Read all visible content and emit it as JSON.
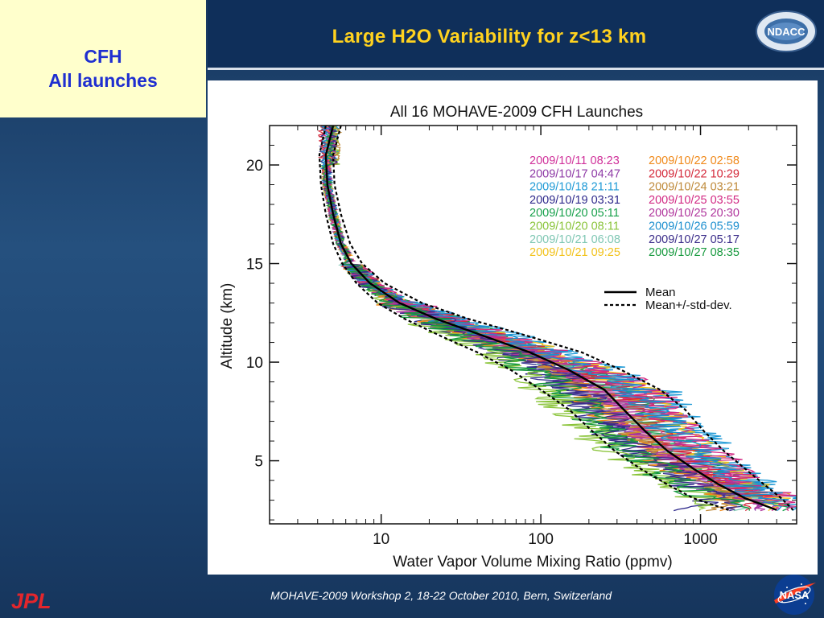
{
  "slide": {
    "tag_line1": "CFH",
    "tag_line2": "All launches",
    "title": "Large H2O Variability for z<13 km",
    "footer": "MOHAVE-2009 Workshop 2, 18-22 October 2010, Bern, Switzerland",
    "logo_ndacc": "NDACC",
    "logo_jpl": "JPL",
    "logo_nasa": "NASA"
  },
  "colors": {
    "title": "#ffd21f",
    "tag_text": "#1f2fd0",
    "tag_bg": "#ffffcc"
  },
  "chart_data": {
    "type": "line",
    "title": "All 16 MOHAVE-2009 CFH Launches",
    "xlabel": "Water Vapor Volume Mixing Ratio (ppmv)",
    "ylabel": "Altitude (km)",
    "xscale": "log",
    "xlim": [
      2,
      4000
    ],
    "ylim": [
      1.8,
      22
    ],
    "xticks": [
      {
        "v": 10,
        "label": "10"
      },
      {
        "v": 100,
        "label": "100"
      },
      {
        "v": 1000,
        "label": "1000"
      }
    ],
    "yticks": [
      {
        "v": 5,
        "label": "5"
      },
      {
        "v": 10,
        "label": "10"
      },
      {
        "v": 15,
        "label": "15"
      },
      {
        "v": 20,
        "label": "20"
      }
    ],
    "grid": false,
    "legend_position": "top-right",
    "mean": {
      "name": "Mean",
      "points": [
        [
          5.0,
          22
        ],
        [
          4.5,
          20.5
        ],
        [
          4.6,
          19
        ],
        [
          5,
          17.5
        ],
        [
          5.6,
          16
        ],
        [
          6.5,
          15
        ],
        [
          8.5,
          14
        ],
        [
          13,
          13
        ],
        [
          22,
          12.2
        ],
        [
          45,
          11.3
        ],
        [
          85,
          10.5
        ],
        [
          150,
          9.6
        ],
        [
          250,
          8.6
        ],
        [
          330,
          7.6
        ],
        [
          450,
          6.5
        ],
        [
          620,
          5.5
        ],
        [
          900,
          4.6
        ],
        [
          1300,
          3.8
        ],
        [
          1900,
          3.1
        ],
        [
          3000,
          2.5
        ]
      ]
    },
    "std": {
      "name": "Mean+/-std-dev.",
      "lower": [
        [
          4.5,
          22
        ],
        [
          4.1,
          20.5
        ],
        [
          4.2,
          19
        ],
        [
          4.5,
          17.5
        ],
        [
          5,
          16
        ],
        [
          5.7,
          15
        ],
        [
          7,
          14
        ],
        [
          9.5,
          13
        ],
        [
          14,
          12.2
        ],
        [
          24,
          11.3
        ],
        [
          40,
          10.5
        ],
        [
          65,
          9.6
        ],
        [
          100,
          8.6
        ],
        [
          150,
          7.6
        ],
        [
          210,
          6.5
        ],
        [
          290,
          5.5
        ],
        [
          420,
          4.6
        ],
        [
          620,
          3.8
        ],
        [
          900,
          3.1
        ],
        [
          1500,
          2.5
        ]
      ],
      "upper": [
        [
          5.6,
          22
        ],
        [
          5.0,
          20.5
        ],
        [
          5.1,
          19
        ],
        [
          5.6,
          17.5
        ],
        [
          6.4,
          16
        ],
        [
          7.6,
          15
        ],
        [
          10.5,
          14
        ],
        [
          18,
          13
        ],
        [
          35,
          12.2
        ],
        [
          85,
          11.3
        ],
        [
          180,
          10.5
        ],
        [
          320,
          9.6
        ],
        [
          560,
          8.6
        ],
        [
          800,
          7.6
        ],
        [
          1050,
          6.5
        ],
        [
          1400,
          5.5
        ],
        [
          1900,
          4.6
        ],
        [
          2500,
          3.8
        ],
        [
          3200,
          3.1
        ],
        [
          3800,
          2.5
        ]
      ]
    },
    "series": [
      {
        "name": "2009/10/11 08:23",
        "color": "#d0309a",
        "start": 4.6,
        "end": 2700,
        "shape": 0.4
      },
      {
        "name": "2009/10/17 04:47",
        "color": "#8e3aa6",
        "start": 4.8,
        "end": 2200,
        "shape": -0.2
      },
      {
        "name": "2009/10/18 21:11",
        "color": "#1f9ad6",
        "start": 5.1,
        "end": 3600,
        "shape": 0.9
      },
      {
        "name": "2009/10/19 03:31",
        "color": "#2f2a8c",
        "start": 4.4,
        "end": 600,
        "shape": -0.6
      },
      {
        "name": "2009/10/20 05:11",
        "color": "#16a04a",
        "start": 4.9,
        "end": 3300,
        "shape": 0.3
      },
      {
        "name": "2009/10/20 08:11",
        "color": "#8ac43a",
        "start": 5.2,
        "end": 900,
        "shape": -1.0
      },
      {
        "name": "2009/10/21 06:08",
        "color": "#7fc7b3",
        "start": 4.5,
        "end": 1500,
        "shape": 0.1
      },
      {
        "name": "2009/10/21 09:25",
        "color": "#f2c21a",
        "start": 5.0,
        "end": 2600,
        "shape": 0.6
      },
      {
        "name": "2009/10/22 02:58",
        "color": "#f0891a",
        "start": 4.7,
        "end": 1200,
        "shape": -0.3
      },
      {
        "name": "2009/10/22 10:29",
        "color": "#d42a3b",
        "start": 4.3,
        "end": 1800,
        "shape": 0.2
      },
      {
        "name": "2009/10/24 03:21",
        "color": "#bf8a3a",
        "start": 5.3,
        "end": 1000,
        "shape": -0.1
      },
      {
        "name": "2009/10/25 03:55",
        "color": "#d22a84",
        "start": 4.6,
        "end": 3400,
        "shape": 0.7
      },
      {
        "name": "2009/10/25 20:30",
        "color": "#b0359c",
        "start": 4.9,
        "end": 2300,
        "shape": 0.0
      },
      {
        "name": "2009/10/26 05:59",
        "color": "#1c8fcf",
        "start": 4.5,
        "end": 3000,
        "shape": 0.5
      },
      {
        "name": "2009/10/27 05:17",
        "color": "#3b2d8a",
        "start": 5.0,
        "end": 1400,
        "shape": -0.4
      },
      {
        "name": "2009/10/27 08:35",
        "color": "#189a3f",
        "start": 4.8,
        "end": 2000,
        "shape": -0.7
      }
    ]
  }
}
